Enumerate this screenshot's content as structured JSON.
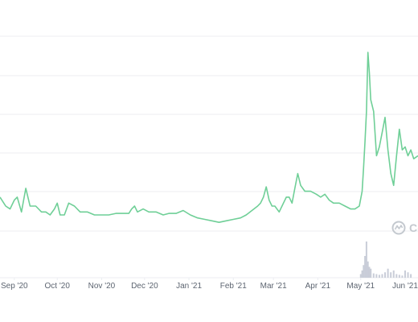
{
  "watermark_text": "Co",
  "colors": {
    "line": "#6fcf97",
    "volume": "#c9cdd8",
    "grid": "#eceef2",
    "axis_text": "#5c6470"
  },
  "chart_data": {
    "type": "line",
    "title": "",
    "xlabel": "",
    "ylabel": "",
    "grid": true,
    "legend": "none",
    "x_tick_labels": [
      "Sep '20",
      "Oct '20",
      "Nov '20",
      "Dec '20",
      "Jan '21",
      "Feb '21",
      "Mar '21",
      "Apr '21",
      "May '21",
      "Jun '21"
    ],
    "x_range": [
      "2020-08-22",
      "2021-06-10"
    ],
    "price_range": [
      0,
      7
    ],
    "price_series": {
      "x": [
        "2020-08-22",
        "2020-08-26",
        "2020-08-29",
        "2020-09-01",
        "2020-09-03",
        "2020-09-06",
        "2020-09-09",
        "2020-09-12",
        "2020-09-16",
        "2020-09-20",
        "2020-09-23",
        "2020-09-26",
        "2020-09-29",
        "2020-10-01",
        "2020-10-03",
        "2020-10-06",
        "2020-10-09",
        "2020-10-13",
        "2020-10-17",
        "2020-10-22",
        "2020-10-27",
        "2020-11-01",
        "2020-11-06",
        "2020-11-11",
        "2020-11-16",
        "2020-11-20",
        "2020-11-22",
        "2020-11-24",
        "2020-11-26",
        "2020-11-30",
        "2020-12-04",
        "2020-12-09",
        "2020-12-14",
        "2020-12-18",
        "2020-12-23",
        "2020-12-28",
        "2021-01-02",
        "2021-01-07",
        "2021-01-12",
        "2021-01-17",
        "2021-01-22",
        "2021-01-27",
        "2021-02-01",
        "2021-02-06",
        "2021-02-10",
        "2021-02-14",
        "2021-02-18",
        "2021-02-20",
        "2021-02-22",
        "2021-02-24",
        "2021-02-26",
        "2021-02-28",
        "2021-03-02",
        "2021-03-05",
        "2021-03-08",
        "2021-03-10",
        "2021-03-12",
        "2021-03-14",
        "2021-03-16",
        "2021-03-18",
        "2021-03-20",
        "2021-03-23",
        "2021-03-27",
        "2021-03-31",
        "2021-04-03",
        "2021-04-06",
        "2021-04-09",
        "2021-04-12",
        "2021-04-16",
        "2021-04-20",
        "2021-04-24",
        "2021-04-27",
        "2021-04-30",
        "2021-05-02",
        "2021-05-03",
        "2021-05-04",
        "2021-05-05",
        "2021-05-06",
        "2021-05-07",
        "2021-05-08",
        "2021-05-10",
        "2021-05-12",
        "2021-05-14",
        "2021-05-16",
        "2021-05-18",
        "2021-05-20",
        "2021-05-22",
        "2021-05-24",
        "2021-05-26",
        "2021-05-28",
        "2021-05-30",
        "2021-06-01",
        "2021-06-03",
        "2021-06-05",
        "2021-06-07",
        "2021-06-10"
      ],
      "y": [
        1.6,
        1.3,
        1.2,
        1.5,
        1.6,
        1.1,
        1.9,
        1.3,
        1.3,
        1.1,
        1.1,
        1.0,
        1.2,
        1.4,
        1.0,
        1.0,
        1.4,
        1.3,
        1.1,
        1.1,
        1.0,
        1.0,
        1.0,
        1.05,
        1.05,
        1.05,
        1.2,
        1.3,
        1.1,
        1.2,
        1.1,
        1.1,
        1.0,
        1.05,
        1.05,
        1.15,
        1.0,
        0.9,
        0.85,
        0.8,
        0.75,
        0.8,
        0.85,
        0.9,
        1.0,
        1.15,
        1.3,
        1.4,
        1.6,
        1.95,
        1.5,
        1.3,
        1.3,
        1.1,
        1.4,
        1.6,
        1.6,
        1.4,
        1.9,
        2.4,
        2.0,
        1.8,
        1.8,
        1.7,
        1.6,
        1.7,
        1.5,
        1.4,
        1.4,
        1.3,
        1.2,
        1.2,
        1.3,
        1.8,
        2.6,
        3.5,
        4.5,
        6.5,
        5.8,
        4.9,
        4.5,
        3.0,
        3.3,
        3.8,
        4.3,
        3.2,
        2.4,
        2.0,
        3.0,
        3.9,
        3.2,
        3.3,
        3.0,
        3.2,
        2.9,
        3.0
      ]
    },
    "volume_series": {
      "x": [
        "2021-05-01",
        "2021-05-02",
        "2021-05-03",
        "2021-05-04",
        "2021-05-05",
        "2021-05-06",
        "2021-05-07",
        "2021-05-08",
        "2021-05-10",
        "2021-05-12",
        "2021-05-14",
        "2021-05-16",
        "2021-05-18",
        "2021-05-20",
        "2021-05-22",
        "2021-05-24",
        "2021-05-26",
        "2021-05-28",
        "2021-05-30",
        "2021-06-01",
        "2021-06-03",
        "2021-06-05"
      ],
      "values": [
        0.1,
        0.2,
        0.35,
        0.6,
        1.0,
        0.45,
        0.3,
        0.25,
        0.12,
        0.1,
        0.08,
        0.1,
        0.15,
        0.25,
        0.15,
        0.2,
        0.1,
        0.08,
        0.06,
        0.2,
        0.15,
        0.1
      ]
    }
  }
}
